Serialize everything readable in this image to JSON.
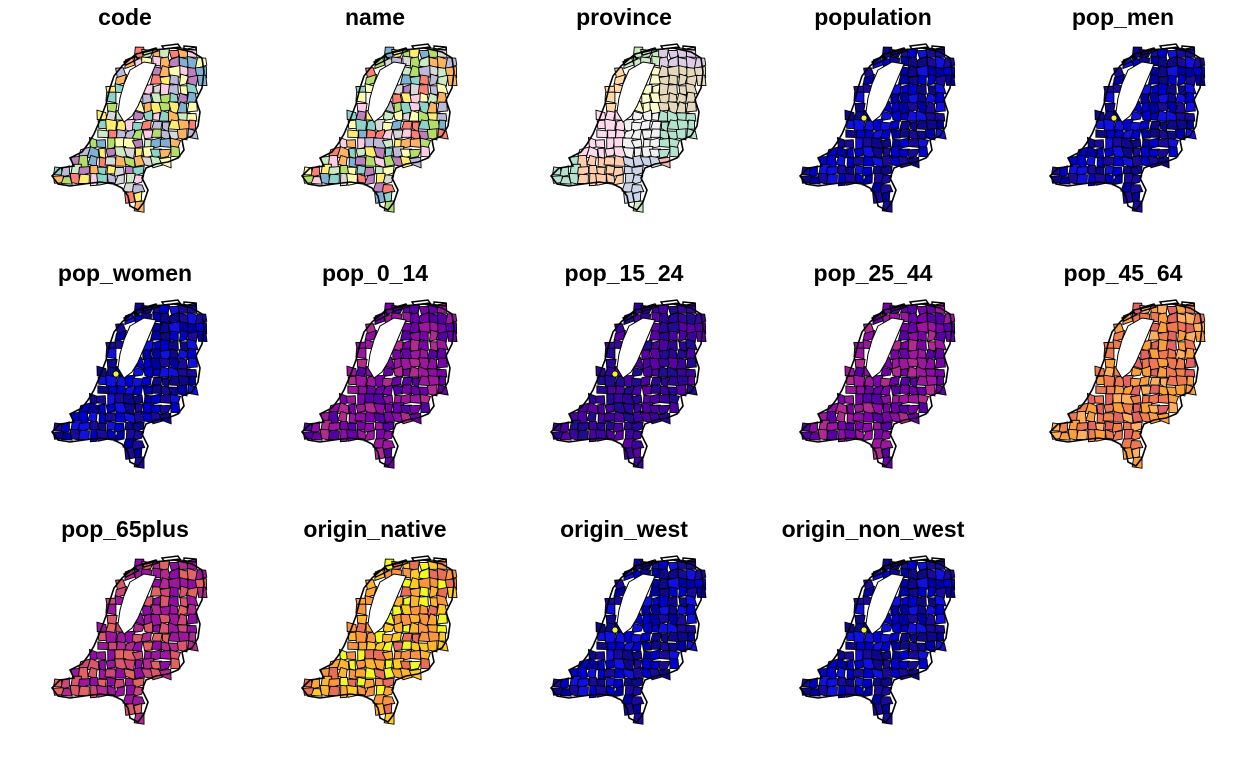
{
  "panels": [
    {
      "title": "code",
      "scheme": "categorical"
    },
    {
      "title": "name",
      "scheme": "categorical"
    },
    {
      "title": "province",
      "scheme": "province"
    },
    {
      "title": "population",
      "scheme": "dark"
    },
    {
      "title": "pop_men",
      "scheme": "dark"
    },
    {
      "title": "pop_women",
      "scheme": "dark"
    },
    {
      "title": "pop_0_14",
      "scheme": "purple"
    },
    {
      "title": "pop_15_24",
      "scheme": "blueviolet"
    },
    {
      "title": "pop_25_44",
      "scheme": "purple"
    },
    {
      "title": "pop_45_64",
      "scheme": "salmon"
    },
    {
      "title": "pop_65plus",
      "scheme": "magenta"
    },
    {
      "title": "origin_native",
      "scheme": "orange"
    },
    {
      "title": "origin_west",
      "scheme": "dark"
    },
    {
      "title": "origin_non_west",
      "scheme": "dark"
    }
  ],
  "palettes": {
    "categorical": [
      "#8dd3c7",
      "#ffffb3",
      "#bebada",
      "#fb8072",
      "#80b1d3",
      "#fdb462",
      "#b3de69",
      "#fccde5",
      "#d9d9d9",
      "#bc80bd",
      "#ccebc5",
      "#ffed6f"
    ],
    "province": [
      "#fbb4ae",
      "#b3cde3",
      "#ccebc5",
      "#decbe4",
      "#fed9a6",
      "#ffffcc",
      "#e5d8bd",
      "#fddaec",
      "#f2f2f2",
      "#b3e2cd",
      "#fdcdac",
      "#cbd5e8"
    ],
    "dark": [
      "#0d0887",
      "#1a0a9c",
      "#0000cc",
      "#1010e0",
      "#0000a0"
    ],
    "purple": [
      "#6a00a8",
      "#8f0da4",
      "#9c179e",
      "#b12a90",
      "#7b02a8",
      "#5402a3"
    ],
    "blueviolet": [
      "#2c0594",
      "#3b049a",
      "#4c02a1",
      "#1f0c8f",
      "#5c01a6"
    ],
    "salmon": [
      "#fb9f3a",
      "#f0804e",
      "#ed7953",
      "#fa9e3b",
      "#e16462",
      "#fdae61"
    ],
    "magenta": [
      "#b12a90",
      "#cc4778",
      "#9c179e",
      "#d8576b",
      "#8f0da4",
      "#e16462"
    ],
    "orange": [
      "#fdca26",
      "#fca636",
      "#f89540",
      "#fdb42f",
      "#f0f921",
      "#e76f5a"
    ]
  },
  "map_colors": {
    "outline": "#000000",
    "water": "#ffffff",
    "highlight": "#f0f921"
  }
}
